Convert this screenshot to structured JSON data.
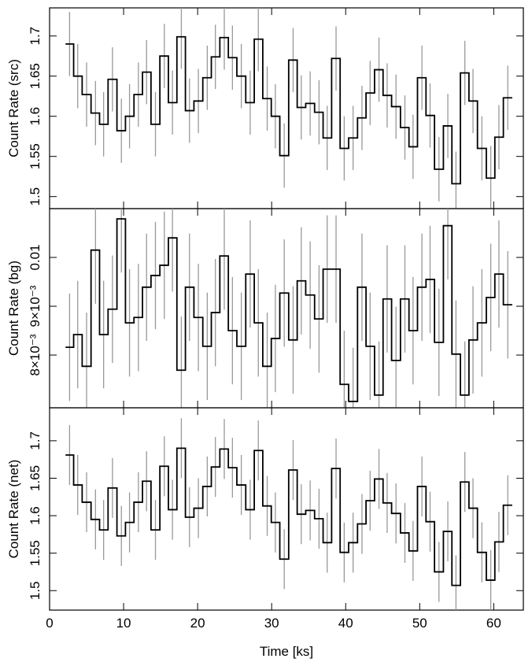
{
  "chart_data": [
    {
      "type": "step",
      "ylabel": "Count Rate (src)",
      "xlim": [
        0,
        64
      ],
      "xticks": [
        0,
        10,
        20,
        30,
        40,
        50,
        60
      ],
      "ylim": [
        1.485,
        1.735
      ],
      "yticks": [
        1.5,
        1.55,
        1.6,
        1.65,
        1.7
      ],
      "color": "#000000",
      "error_color": "#999999",
      "error": 0.04,
      "x": [
        2.7,
        3.8,
        5.0,
        6.2,
        7.3,
        8.5,
        9.7,
        10.8,
        12.0,
        13.1,
        14.3,
        15.5,
        16.6,
        17.8,
        18.9,
        20.1,
        21.3,
        22.4,
        23.6,
        24.7,
        25.9,
        27.1,
        28.2,
        29.4,
        30.5,
        31.7,
        32.9,
        34.0,
        35.2,
        36.4,
        37.5,
        38.7,
        39.8,
        41.0,
        42.2,
        43.3,
        44.5,
        45.6,
        46.8,
        48.0,
        49.1,
        50.3,
        51.4,
        52.6,
        53.8,
        54.9,
        56.1,
        57.2,
        58.4,
        59.6,
        60.7,
        61.9
      ],
      "values": [
        1.69,
        1.65,
        1.627,
        1.604,
        1.59,
        1.646,
        1.582,
        1.6,
        1.627,
        1.655,
        1.59,
        1.675,
        1.617,
        1.699,
        1.607,
        1.619,
        1.648,
        1.674,
        1.698,
        1.673,
        1.65,
        1.617,
        1.696,
        1.622,
        1.6,
        1.551,
        1.67,
        1.611,
        1.616,
        1.605,
        1.573,
        1.672,
        1.56,
        1.573,
        1.598,
        1.629,
        1.658,
        1.626,
        1.612,
        1.586,
        1.562,
        1.648,
        1.601,
        1.534,
        1.588,
        1.516,
        1.654,
        1.619,
        1.56,
        1.523,
        1.574,
        1.623
      ]
    },
    {
      "type": "step",
      "ylabel": "Count Rate (bg)",
      "xlim": [
        0,
        64
      ],
      "xticks": [
        0,
        10,
        20,
        30,
        40,
        50,
        60
      ],
      "ylim": [
        0.00692,
        0.011
      ],
      "yticks": [
        {
          "value": 0.008,
          "label": "8×10⁻³"
        },
        {
          "value": 0.009,
          "label": "9×10⁻³"
        },
        0.01
      ],
      "color": "#000000",
      "error_color": "#999999",
      "error": 0.0011,
      "x": [
        2.7,
        3.8,
        5.0,
        6.2,
        7.3,
        8.5,
        9.7,
        10.8,
        12.0,
        13.1,
        14.3,
        15.5,
        16.6,
        17.8,
        18.9,
        20.1,
        21.3,
        22.4,
        23.6,
        24.7,
        25.9,
        27.1,
        28.2,
        29.4,
        30.5,
        31.7,
        32.9,
        34.0,
        35.2,
        36.4,
        37.5,
        38.7,
        39.8,
        41.0,
        42.2,
        43.3,
        44.5,
        45.6,
        46.8,
        48.0,
        49.1,
        50.3,
        51.4,
        52.6,
        53.8,
        54.9,
        56.1,
        57.2,
        58.4,
        59.6,
        60.7,
        61.9
      ],
      "values": [
        0.00816,
        0.00842,
        0.00777,
        0.01015,
        0.00842,
        0.00894,
        0.01079,
        0.00866,
        0.00877,
        0.00939,
        0.00963,
        0.00984,
        0.0104,
        0.00769,
        0.00939,
        0.00877,
        0.00818,
        0.00887,
        0.01003,
        0.0085,
        0.00818,
        0.00966,
        0.00866,
        0.00777,
        0.00834,
        0.00927,
        0.00831,
        0.00952,
        0.00923,
        0.00874,
        0.00976,
        0.00976,
        0.0074,
        0.00705,
        0.00939,
        0.00818,
        0.00718,
        0.00915,
        0.00789,
        0.00915,
        0.0085,
        0.00939,
        0.00955,
        0.00826,
        0.01065,
        0.00802,
        0.00718,
        0.00831,
        0.00866,
        0.00918,
        0.00966,
        0.00903
      ]
    },
    {
      "type": "step",
      "ylabel": "Count Rate (net)",
      "xlabel": "Time [ks]",
      "xlim": [
        0,
        64
      ],
      "xticks": [
        0,
        10,
        20,
        30,
        40,
        50,
        60
      ],
      "ylim": [
        1.474,
        1.744
      ],
      "yticks": [
        1.5,
        1.55,
        1.6,
        1.65,
        1.7
      ],
      "color": "#000000",
      "error_color": "#999999",
      "error": 0.04,
      "x": [
        2.7,
        3.8,
        5.0,
        6.2,
        7.3,
        8.5,
        9.7,
        10.8,
        12.0,
        13.1,
        14.3,
        15.5,
        16.6,
        17.8,
        18.9,
        20.1,
        21.3,
        22.4,
        23.6,
        24.7,
        25.9,
        27.1,
        28.2,
        29.4,
        30.5,
        31.7,
        32.9,
        34.0,
        35.2,
        36.4,
        37.5,
        38.7,
        39.8,
        41.0,
        42.2,
        43.3,
        44.5,
        45.6,
        46.8,
        48.0,
        49.1,
        50.3,
        51.4,
        52.6,
        53.8,
        54.9,
        56.1,
        57.2,
        58.4,
        59.6,
        60.7,
        61.9
      ],
      "values": [
        1.681,
        1.641,
        1.618,
        1.595,
        1.581,
        1.637,
        1.573,
        1.591,
        1.618,
        1.646,
        1.581,
        1.666,
        1.608,
        1.69,
        1.598,
        1.61,
        1.639,
        1.665,
        1.689,
        1.664,
        1.641,
        1.608,
        1.687,
        1.613,
        1.591,
        1.542,
        1.661,
        1.602,
        1.607,
        1.596,
        1.564,
        1.663,
        1.551,
        1.564,
        1.589,
        1.62,
        1.649,
        1.617,
        1.603,
        1.577,
        1.553,
        1.639,
        1.592,
        1.525,
        1.579,
        1.507,
        1.645,
        1.61,
        1.551,
        1.514,
        1.565,
        1.614
      ]
    }
  ]
}
